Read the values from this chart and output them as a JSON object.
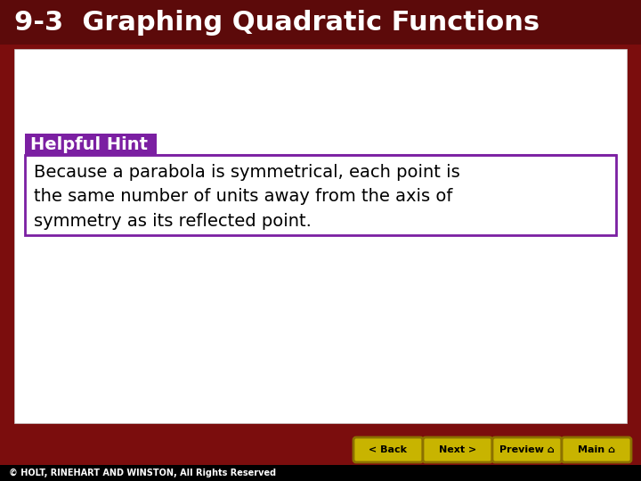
{
  "title": "9-3  Graphing Quadratic Functions",
  "title_bg_color": "#5C0A0A",
  "title_text_color": "#FFFFFF",
  "title_fontsize": 22,
  "slide_bg_color": "#FFFFFF",
  "outer_bg_color": "#7B0D0D",
  "hint_label": "Helpful Hint",
  "hint_label_bg": "#7B1FA2",
  "hint_label_text_color": "#FFFFFF",
  "hint_label_fontsize": 14,
  "hint_box_border_color": "#7B1FA2",
  "hint_text": "Because a parabola is symmetrical, each point is\nthe same number of units away from the axis of\nsymmetry as its reflected point.",
  "hint_text_fontsize": 14,
  "hint_text_color": "#000000",
  "footer_text": "© HOLT, RINEHART AND WINSTON, All Rights Reserved",
  "footer_bg": "#000000",
  "footer_text_color": "#FFFFFF",
  "footer_fontsize": 7,
  "button_labels": [
    "< Back",
    "Next >",
    "Preview  n",
    "Main  n"
  ],
  "button_display": [
    "< Back",
    "Next >",
    "Preview ⌂",
    "Main ⌂"
  ],
  "button_color": "#C8B400",
  "button_text_color": "#000000",
  "button_fontsize": 8
}
